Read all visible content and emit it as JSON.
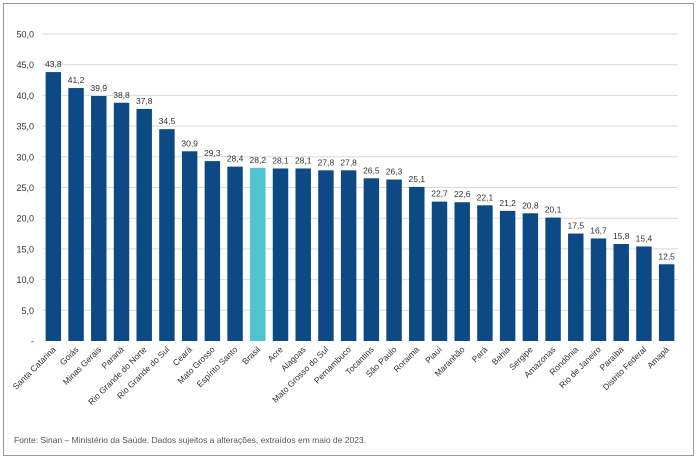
{
  "chart_data": {
    "type": "bar",
    "categories": [
      "Santa Catarina",
      "Goiás",
      "Minas Gerais",
      "Paraná",
      "Rio Grande do Norte",
      "Rio Grande do Sul",
      "Ceará",
      "Mato Grosso",
      "Espírito Santo",
      "Brasil",
      "Acre",
      "Alagoas",
      "Mato Grosso do Sul",
      "Pernambuco",
      "Tocantins",
      "São Paulo",
      "Roraima",
      "Piauí",
      "Maranhão",
      "Pará",
      "Bahia",
      "Sergipe",
      "Amazonas",
      "Rondônia",
      "Rio de Janeiro",
      "Paraíba",
      "Distrito Federal",
      "Amapá"
    ],
    "values": [
      43.8,
      41.2,
      39.9,
      38.8,
      37.8,
      34.5,
      30.9,
      29.3,
      28.4,
      28.2,
      28.1,
      28.1,
      27.8,
      27.8,
      26.5,
      26.3,
      25.1,
      22.7,
      22.6,
      22.1,
      21.2,
      20.8,
      20.1,
      17.5,
      16.7,
      15.8,
      15.4,
      12.5
    ],
    "value_labels": [
      "43,8",
      "41,2",
      "39,9",
      "38,8",
      "37,8",
      "34,5",
      "30,9",
      "29,3",
      "28,4",
      "28,2",
      "28,1",
      "28,1",
      "27,8",
      "27,8",
      "26,5",
      "26,3",
      "25,1",
      "22,7",
      "22,6",
      "22,1",
      "21,2",
      "20,8",
      "20,1",
      "17,5",
      "16,7",
      "15,8",
      "15,4",
      "12,5"
    ],
    "highlight_category": "Brasil",
    "colors": {
      "bar": "#0d4a85",
      "highlight": "#4fc3cf",
      "grid": "#d9d9d9",
      "text": "#333333"
    },
    "ylim": [
      0,
      50
    ],
    "yticks": [
      0,
      5,
      10,
      15,
      20,
      25,
      30,
      35,
      40,
      45,
      50
    ],
    "ytick_labels": [
      "-",
      "5,0",
      "10,0",
      "15,0",
      "20,0",
      "25,0",
      "30,0",
      "35,0",
      "40,0",
      "45,0",
      "50,0"
    ],
    "grid": true,
    "xlabel": "",
    "ylabel": "",
    "title": ""
  },
  "source_note": "Fonte: Sinan – Ministério da Saúde. Dados sujeitos a alterações, extraídos em maio de 2023."
}
